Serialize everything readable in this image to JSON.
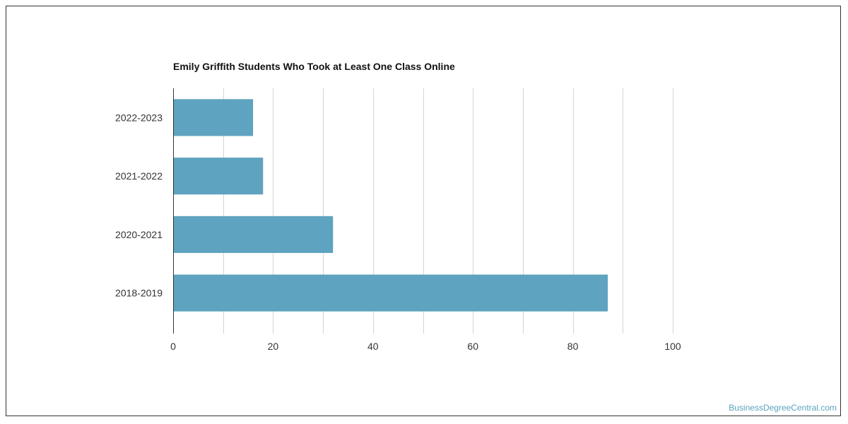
{
  "chart_data": {
    "type": "bar",
    "orientation": "horizontal",
    "title": "Emily Griffith Students Who Took at Least One Class Online",
    "categories": [
      "2022-2023",
      "2021-2022",
      "2020-2021",
      "2018-2019"
    ],
    "values": [
      16,
      18,
      32,
      87
    ],
    "xlim": [
      0,
      100
    ],
    "xticks": [
      "0",
      "20",
      "40",
      "60",
      "80",
      "100"
    ],
    "xlabel": "",
    "ylabel": "",
    "grid": true,
    "bar_color": "#5ea3bf"
  },
  "source": "BusinessDegreeCentral.com"
}
